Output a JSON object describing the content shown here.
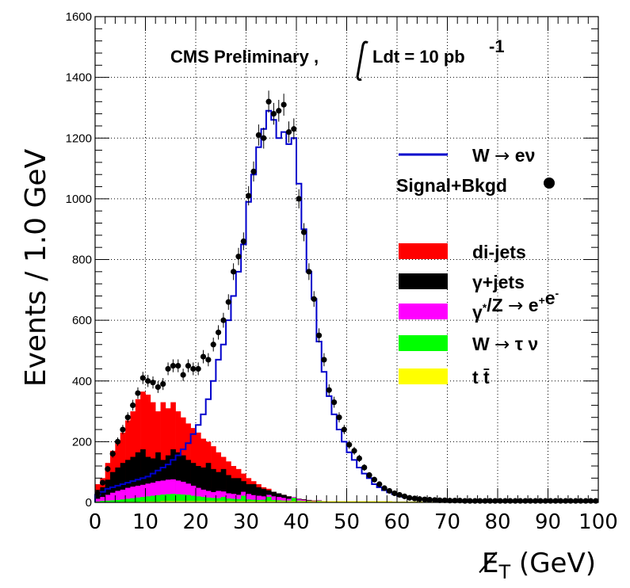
{
  "chart_data": {
    "type": "histogram",
    "title_main": "CMS Preliminary , ",
    "title_integral": "Ldt = 10 pb",
    "title_sup": "-1",
    "xlabel": "E̸",
    "xlabel_sub": "T",
    "xlabel_unit": " (GeV)",
    "ylabel": "Events / 1.0 GeV",
    "xlim": [
      0,
      100
    ],
    "ylim": [
      0,
      1600
    ],
    "x_ticks": [
      0,
      10,
      20,
      30,
      40,
      50,
      60,
      70,
      80,
      90,
      100
    ],
    "y_ticks": [
      0,
      200,
      400,
      600,
      800,
      1000,
      1200,
      1400,
      1600
    ],
    "grid": true,
    "bin_width": 1.0,
    "legend_position": "right",
    "colors": {
      "signal_line": "#0000cc",
      "dijets": "#ff0000",
      "gamma_jets": "#000000",
      "dy": "#ff00ff",
      "wtau": "#00ff00",
      "ttbar": "#ffff00",
      "data": "#000000"
    },
    "legend": [
      {
        "key": "signal",
        "parts": [
          "W ",
          "→",
          " eν"
        ],
        "style": "line",
        "color": "#0000cc"
      },
      {
        "key": "data",
        "parts": [
          "Signal+Bkgd"
        ],
        "style": "marker",
        "color": "#000000"
      },
      {
        "key": "dijets",
        "parts": [
          "di-jets"
        ],
        "style": "fill",
        "color": "#ff0000"
      },
      {
        "key": "gamma_jets",
        "parts": [
          "γ+jets"
        ],
        "style": "fill",
        "color": "#000000"
      },
      {
        "key": "dy",
        "parts": [
          "γ",
          "*",
          "/Z ",
          "→",
          " e",
          "+",
          "e",
          "-"
        ],
        "style": "fill",
        "color": "#ff00ff"
      },
      {
        "key": "wtau",
        "parts": [
          "W ",
          "→",
          " τ ν"
        ],
        "style": "fill",
        "color": "#00ff00"
      },
      {
        "key": "ttbar",
        "parts": [
          "t t̄"
        ],
        "style": "fill",
        "color": "#ffff00"
      }
    ],
    "series": [
      {
        "key": "stack_total_background",
        "values": [
          60,
          80,
          130,
          170,
          200,
          230,
          270,
          300,
          340,
          365,
          355,
          330,
          300,
          330,
          310,
          330,
          300,
          280,
          260,
          245,
          230,
          210,
          200,
          185,
          165,
          150,
          135,
          120,
          110,
          95,
          80,
          70,
          60,
          50,
          45,
          35,
          30,
          25,
          20,
          15,
          12,
          10,
          8,
          6,
          5,
          4,
          3,
          3,
          2,
          2,
          2,
          1,
          1,
          1,
          1,
          1,
          1,
          1,
          1,
          1,
          1,
          0,
          0,
          0,
          0,
          0,
          0,
          0,
          0,
          0,
          0,
          0,
          0,
          0,
          0,
          0,
          0,
          0,
          0,
          0,
          0,
          0,
          0,
          0,
          0,
          0,
          0,
          0,
          0,
          0,
          0,
          0,
          0,
          0,
          0,
          0,
          0,
          0,
          0,
          0
        ]
      },
      {
        "key": "stack_gamma_jets_and_below",
        "values": [
          35,
          50,
          75,
          100,
          115,
          130,
          140,
          150,
          165,
          175,
          150,
          145,
          165,
          140,
          155,
          175,
          165,
          155,
          140,
          130,
          120,
          115,
          130,
          110,
          100,
          110,
          90,
          80,
          80,
          70,
          60,
          60,
          50,
          45,
          40,
          35,
          30,
          25,
          20,
          15,
          12,
          10,
          8,
          6,
          5,
          4,
          3,
          3,
          2,
          2,
          2,
          1,
          1,
          1,
          1,
          1,
          1,
          1,
          1,
          1,
          1,
          0,
          0,
          0,
          0,
          0,
          0,
          0,
          0,
          0,
          0,
          0,
          0,
          0,
          0,
          0,
          0,
          0,
          0,
          0,
          0,
          0,
          0,
          0,
          0,
          0,
          0,
          0,
          0,
          0,
          0,
          0,
          0,
          0,
          0,
          0,
          0,
          0,
          0,
          0
        ]
      },
      {
        "key": "stack_dy_and_below",
        "values": [
          12,
          18,
          25,
          32,
          38,
          42,
          48,
          52,
          55,
          58,
          62,
          65,
          70,
          72,
          75,
          76,
          72,
          68,
          62,
          55,
          48,
          42,
          38,
          34,
          38,
          36,
          30,
          28,
          25,
          35,
          28,
          24,
          22,
          20,
          25,
          20,
          18,
          15,
          12,
          18,
          10,
          8,
          6,
          5,
          8,
          4,
          3,
          3,
          2,
          2,
          2,
          1,
          1,
          1,
          1,
          1,
          1,
          1,
          1,
          1,
          1,
          0,
          0,
          0,
          0,
          0,
          0,
          0,
          0,
          0,
          0,
          0,
          0,
          0,
          0,
          0,
          0,
          0,
          0,
          0,
          0,
          0,
          0,
          0,
          0,
          0,
          0,
          0,
          0,
          0,
          0,
          0,
          0,
          0,
          0,
          0,
          0,
          0,
          0,
          0
        ]
      },
      {
        "key": "stack_wtau_and_below",
        "values": [
          3,
          5,
          6,
          7,
          8,
          10,
          12,
          14,
          16,
          18,
          20,
          22,
          24,
          26,
          27,
          28,
          27,
          26,
          25,
          22,
          20,
          18,
          16,
          15,
          14,
          18,
          13,
          12,
          11,
          22,
          10,
          9,
          8,
          9,
          18,
          8,
          7,
          6,
          6,
          15,
          6,
          5,
          5,
          4,
          6,
          4,
          3,
          3,
          3,
          3,
          3,
          3,
          2,
          2,
          2,
          2,
          2,
          2,
          2,
          2,
          2,
          1,
          1,
          1,
          1,
          1,
          1,
          1,
          1,
          1,
          1,
          1,
          1,
          1,
          1,
          1,
          1,
          1,
          1,
          1,
          1,
          1,
          1,
          1,
          1,
          1,
          1,
          1,
          1,
          1,
          1,
          1,
          1,
          1,
          1,
          1,
          1,
          1,
          1,
          1
        ]
      },
      {
        "key": "ttbar",
        "values": [
          1,
          1,
          1,
          1,
          1,
          2,
          2,
          2,
          2,
          3,
          3,
          3,
          3,
          4,
          4,
          4,
          4,
          4,
          4,
          4,
          4,
          4,
          4,
          4,
          4,
          4,
          4,
          4,
          4,
          4,
          4,
          4,
          4,
          4,
          4,
          4,
          4,
          4,
          4,
          4,
          4,
          4,
          4,
          4,
          4,
          4,
          4,
          4,
          4,
          4,
          4,
          4,
          4,
          4,
          4,
          4,
          4,
          4,
          4,
          3,
          3,
          3,
          3,
          3,
          3,
          2,
          2,
          2,
          2,
          2,
          2,
          2,
          2,
          2,
          2,
          1,
          1,
          1,
          1,
          1,
          1,
          1,
          1,
          1,
          1,
          1,
          1,
          1,
          1,
          1,
          1,
          1,
          1,
          1,
          1,
          1,
          1,
          1,
          1,
          1
        ]
      },
      {
        "key": "signal_w_to_enu",
        "values": [
          25,
          35,
          45,
          50,
          55,
          60,
          65,
          70,
          75,
          80,
          85,
          95,
          105,
          115,
          125,
          140,
          155,
          175,
          195,
          225,
          255,
          290,
          340,
          400,
          470,
          520,
          600,
          680,
          760,
          850,
          990,
          1080,
          1170,
          1230,
          1290,
          1260,
          1200,
          1220,
          1180,
          1200,
          1050,
          900,
          760,
          670,
          530,
          430,
          350,
          290,
          240,
          200,
          165,
          140,
          115,
          95,
          80,
          60,
          50,
          40,
          33,
          27,
          22,
          18,
          15,
          12,
          10,
          9,
          8,
          7,
          6,
          6,
          5,
          5,
          5,
          4,
          4,
          4,
          4,
          3,
          3,
          3,
          3,
          3,
          3,
          3,
          3,
          2,
          2,
          2,
          2,
          2,
          2,
          2,
          2,
          2,
          2,
          2,
          2,
          2,
          2,
          2
        ]
      },
      {
        "key": "data_signal_plus_bkgd",
        "values": [
          30,
          65,
          110,
          160,
          200,
          240,
          280,
          320,
          360,
          410,
          400,
          395,
          380,
          390,
          440,
          450,
          450,
          420,
          450,
          440,
          440,
          480,
          470,
          520,
          560,
          600,
          660,
          760,
          810,
          860,
          1010,
          1090,
          1210,
          1200,
          1320,
          1280,
          1290,
          1310,
          1220,
          1230,
          1000,
          890,
          760,
          670,
          550,
          470,
          370,
          330,
          280,
          240,
          190,
          170,
          145,
          115,
          90,
          75,
          60,
          47,
          38,
          30,
          25,
          20,
          15,
          13,
          11,
          10,
          9,
          8,
          7,
          7,
          6,
          6,
          6,
          5,
          5,
          5,
          5,
          5,
          5,
          5,
          5,
          5,
          5,
          5,
          5,
          5,
          5,
          5,
          5,
          5,
          5,
          5,
          5,
          5,
          5,
          5,
          5,
          5,
          5,
          5
        ]
      }
    ]
  }
}
